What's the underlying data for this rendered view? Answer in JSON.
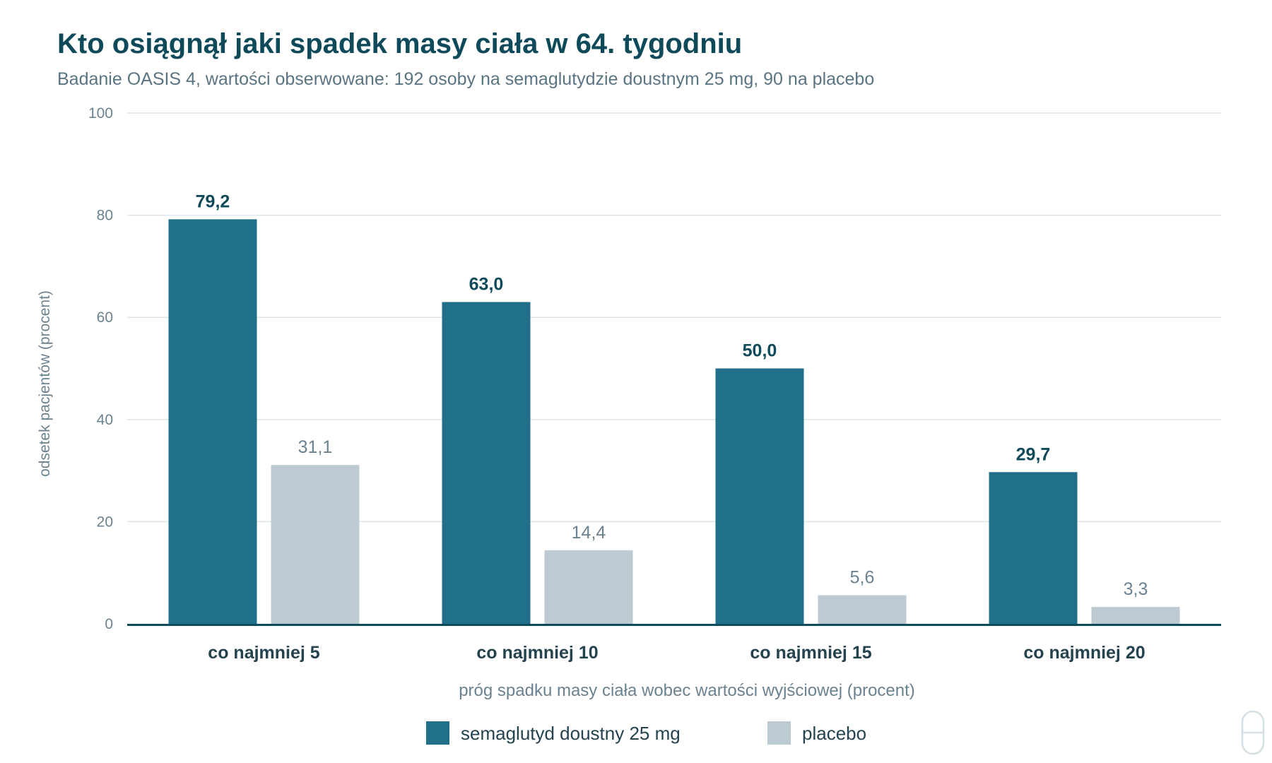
{
  "chart_data": {
    "type": "bar",
    "title": "Kto osiągnął jaki spadek masy ciała w 64. tygodniu",
    "subtitle": "Badanie OASIS 4, wartości obserwowane: 192 osoby na semaglutydzie doustnym 25 mg, 90 na placebo",
    "xlabel": "próg spadku masy ciała wobec wartości wyjściowej (procent)",
    "ylabel": "odsetek pacjentów (procent)",
    "ylim": [
      0,
      100
    ],
    "yticks": [
      0,
      20,
      40,
      60,
      80,
      100
    ],
    "ytick_labels": [
      "0",
      "20",
      "40",
      "60",
      "80",
      "100"
    ],
    "grid": true,
    "legend_position": "bottom-center",
    "categories": [
      "co najmniej 5",
      "co najmniej 10",
      "co najmniej 15",
      "co najmniej 20"
    ],
    "series": [
      {
        "name": "semaglutyd doustny 25 mg",
        "color": "#1f7088",
        "values": [
          79.2,
          63.0,
          50.0,
          29.7
        ],
        "labels": [
          "79,2",
          "63,0",
          "50,0",
          "29,7"
        ]
      },
      {
        "name": "placebo",
        "color": "#bccbd2",
        "values": [
          31.1,
          14.4,
          5.6,
          3.3
        ],
        "labels": [
          "31,1",
          "14,4",
          "5,6",
          "3,3"
        ]
      }
    ]
  },
  "corner_icon": "pill-icon"
}
